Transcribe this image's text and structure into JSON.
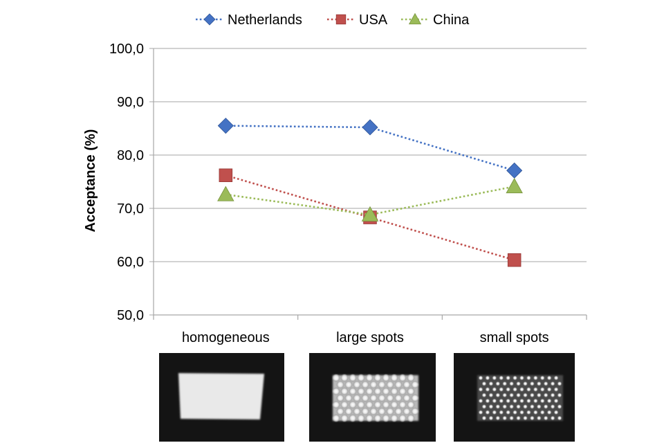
{
  "chart_data": {
    "type": "line",
    "title": "",
    "xlabel": "",
    "ylabel": "Acceptance (%)",
    "ylim": [
      50,
      100
    ],
    "ytick_step": 10,
    "ytick_labels": [
      "50,0",
      "60,0",
      "70,0",
      "80,0",
      "90,0",
      "100,0"
    ],
    "categories": [
      "homogeneous",
      "large spots",
      "small spots"
    ],
    "series": [
      {
        "name": "Netherlands",
        "values": [
          85.5,
          85.2,
          77.1
        ],
        "color": "#4472C4",
        "marker": "diamond"
      },
      {
        "name": "USA",
        "values": [
          76.2,
          68.3,
          60.3
        ],
        "color": "#C0504D",
        "marker": "square"
      },
      {
        "name": "China",
        "values": [
          72.6,
          68.8,
          74.1
        ],
        "color": "#9BBB59",
        "marker": "triangle"
      }
    ],
    "grid": true,
    "legend_position": "top-center",
    "line_style": "dotted"
  },
  "images": [
    {
      "category": "homogeneous",
      "pattern": "homogeneous"
    },
    {
      "category": "large spots",
      "pattern": "large-spots"
    },
    {
      "category": "small spots",
      "pattern": "small-spots"
    }
  ]
}
